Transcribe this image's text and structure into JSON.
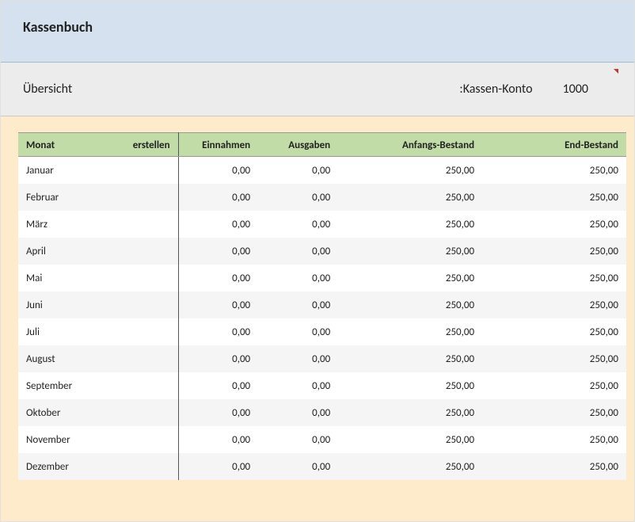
{
  "colors": {
    "title_band": "#d6e1f0",
    "sub_band": "#ececec",
    "table_frame": "#fdebcc",
    "header_row": "#c1dca7",
    "stripe": "#f5f5f5",
    "corner_mark": "#c0392b",
    "divider": "#555555"
  },
  "title": "Kassenbuch",
  "subheader": {
    "left_label": "Übersicht",
    "kassen_konto_label": ":Kassen-Konto",
    "konto_nr": "1000"
  },
  "table": {
    "columns": {
      "monat": "Monat",
      "erstellen": "erstellen",
      "einnahmen": "Einnahmen",
      "ausgaben": "Ausgaben",
      "anfangs": "Anfangs-Bestand",
      "end": "End-Bestand"
    },
    "rows": [
      {
        "monat": "Januar",
        "einnahmen": "0,00",
        "ausgaben": "0,00",
        "anfangs": "250,00",
        "end": "250,00"
      },
      {
        "monat": "Februar",
        "einnahmen": "0,00",
        "ausgaben": "0,00",
        "anfangs": "250,00",
        "end": "250,00"
      },
      {
        "monat": "März",
        "einnahmen": "0,00",
        "ausgaben": "0,00",
        "anfangs": "250,00",
        "end": "250,00"
      },
      {
        "monat": "April",
        "einnahmen": "0,00",
        "ausgaben": "0,00",
        "anfangs": "250,00",
        "end": "250,00"
      },
      {
        "monat": "Mai",
        "einnahmen": "0,00",
        "ausgaben": "0,00",
        "anfangs": "250,00",
        "end": "250,00"
      },
      {
        "monat": "Juni",
        "einnahmen": "0,00",
        "ausgaben": "0,00",
        "anfangs": "250,00",
        "end": "250,00"
      },
      {
        "monat": "Juli",
        "einnahmen": "0,00",
        "ausgaben": "0,00",
        "anfangs": "250,00",
        "end": "250,00"
      },
      {
        "monat": "August",
        "einnahmen": "0,00",
        "ausgaben": "0,00",
        "anfangs": "250,00",
        "end": "250,00"
      },
      {
        "monat": "September",
        "einnahmen": "0,00",
        "ausgaben": "0,00",
        "anfangs": "250,00",
        "end": "250,00"
      },
      {
        "monat": "Oktober",
        "einnahmen": "0,00",
        "ausgaben": "0,00",
        "anfangs": "250,00",
        "end": "250,00"
      },
      {
        "monat": "November",
        "einnahmen": "0,00",
        "ausgaben": "0,00",
        "anfangs": "250,00",
        "end": "250,00"
      },
      {
        "monat": "Dezember",
        "einnahmen": "0,00",
        "ausgaben": "0,00",
        "anfangs": "250,00",
        "end": "250,00"
      }
    ]
  }
}
